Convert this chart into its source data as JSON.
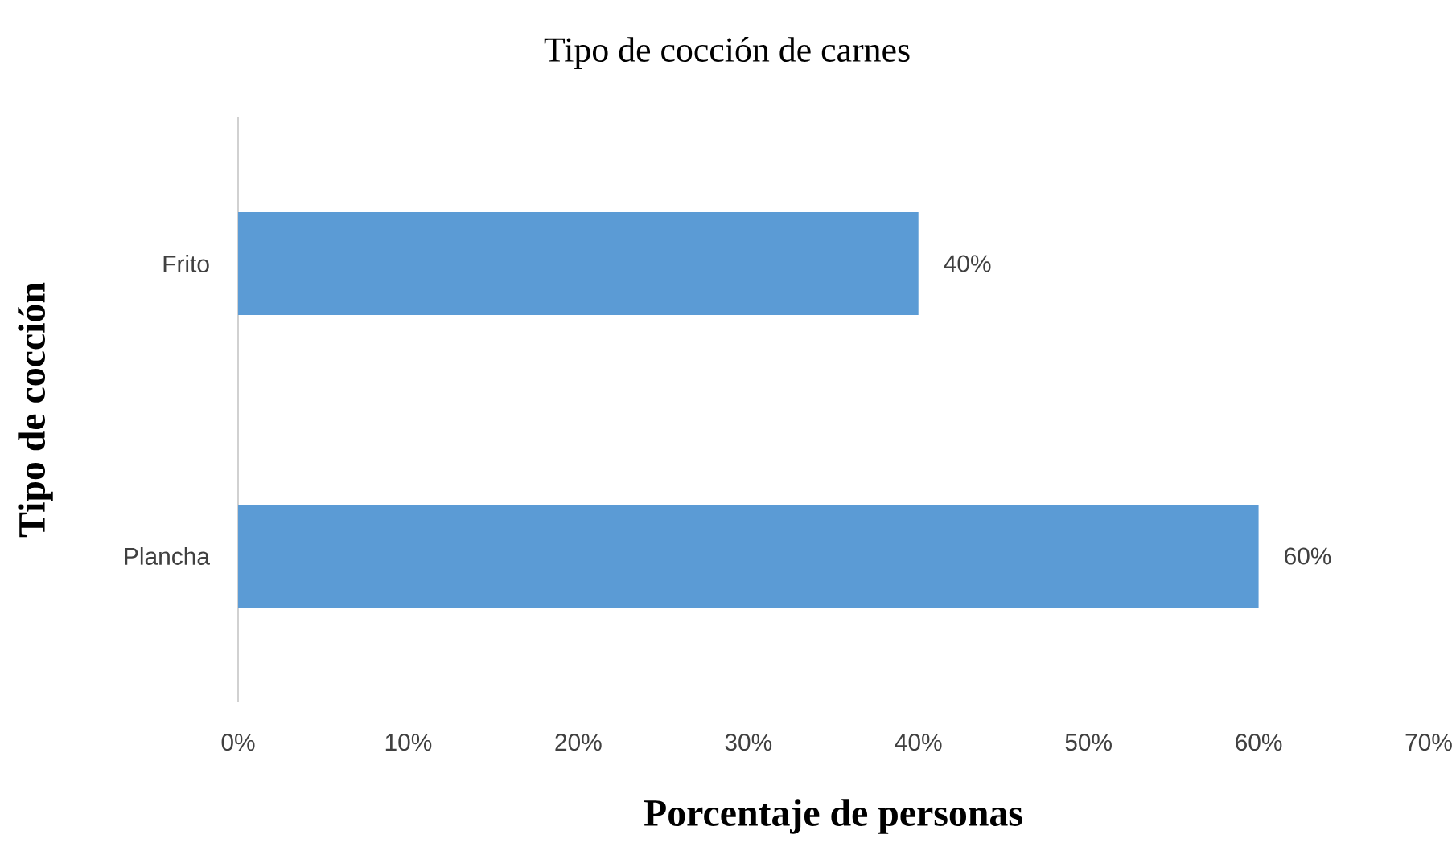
{
  "chart_data": {
    "type": "bar",
    "orientation": "horizontal",
    "title": "Tipo de cocción de carnes",
    "xlabel": "Porcentaje de personas",
    "ylabel": "Tipo de cocción",
    "categories": [
      "Frito",
      "Plancha"
    ],
    "values": [
      40,
      60
    ],
    "color": "#5b9bd5",
    "value_labels": [
      "40%",
      "60%"
    ],
    "xlim": [
      0,
      70
    ],
    "xticks": [
      {
        "value": 0,
        "label": "0%"
      },
      {
        "value": 10,
        "label": "10%"
      },
      {
        "value": 20,
        "label": "20%"
      },
      {
        "value": 30,
        "label": "30%"
      },
      {
        "value": 40,
        "label": "40%"
      },
      {
        "value": 50,
        "label": "50%"
      },
      {
        "value": 60,
        "label": "60%"
      },
      {
        "value": 70,
        "label": "70%"
      }
    ]
  }
}
